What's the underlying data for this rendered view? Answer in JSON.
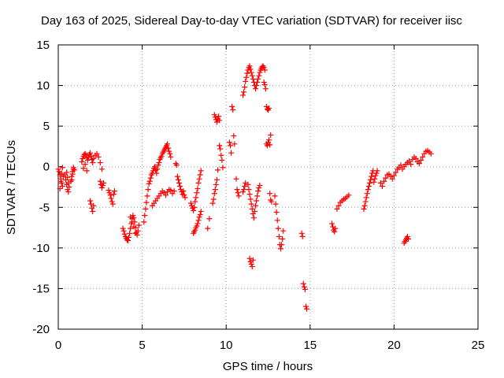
{
  "chart_data": {
    "type": "scatter",
    "title": "Day 163 of 2025, Sidereal Day-to-day VTEC variation (SDTVAR) for receiver iisc",
    "xlabel": "GPS time / hours",
    "ylabel": "SDTVAR / TECUs",
    "xlim": [
      0,
      25
    ],
    "ylim": [
      -20,
      15
    ],
    "xticks": [
      0,
      5,
      10,
      15,
      20,
      25
    ],
    "yticks": [
      -20,
      -15,
      -10,
      -5,
      0,
      5,
      10,
      15
    ],
    "grid": true,
    "marker": "+",
    "color": "#ff0000",
    "series": [
      {
        "name": "SDTVAR",
        "x": [
          0.0,
          0.05,
          0.1,
          0.15,
          0.2,
          0.25,
          0.3,
          0.1,
          0.15,
          0.2,
          0.25,
          0.4,
          0.45,
          0.5,
          0.55,
          0.6,
          0.65,
          0.5,
          0.55,
          0.6,
          0.75,
          0.8,
          0.85,
          0.9,
          0.95,
          0.8,
          0.85,
          0.9,
          1.4,
          1.45,
          1.5,
          1.55,
          1.6,
          1.65,
          1.7,
          1.75,
          1.8,
          1.85,
          1.9,
          1.95,
          2.0,
          2.05,
          2.1,
          2.2,
          2.3,
          2.4,
          2.5,
          2.6,
          1.5,
          1.6,
          1.7,
          1.9,
          1.95,
          2.0,
          2.05,
          2.1,
          2.5,
          2.55,
          2.6,
          2.65,
          2.7,
          3.0,
          3.05,
          3.1,
          3.15,
          3.2,
          3.25,
          3.3,
          3.35,
          3.85,
          3.9,
          3.95,
          4.0,
          4.05,
          4.1,
          4.15,
          4.2,
          4.25,
          4.3,
          4.35,
          4.4,
          4.45,
          4.5,
          4.55,
          4.6,
          4.65,
          4.7,
          4.75,
          4.8,
          4.3,
          4.4,
          4.5,
          4.6,
          5.1,
          5.15,
          5.2,
          5.25,
          5.3,
          5.35,
          5.4,
          5.45,
          5.5,
          5.55,
          5.6,
          5.65,
          5.7,
          5.75,
          5.8,
          5.85,
          5.9,
          5.95,
          6.0,
          6.05,
          6.1,
          6.15,
          6.2,
          6.25,
          6.3,
          6.35,
          6.4,
          6.45,
          6.5,
          6.55,
          6.6,
          6.65,
          6.7,
          5.6,
          5.7,
          5.8,
          5.9,
          6.0,
          6.1,
          6.2,
          6.3,
          6.4,
          6.5,
          6.6,
          6.7,
          6.8,
          6.9,
          7.0,
          7.05,
          7.1,
          7.15,
          7.2,
          7.25,
          7.3,
          7.35,
          7.4,
          7.45,
          7.5,
          7.55,
          7.9,
          7.95,
          8.0,
          8.05,
          8.1,
          8.15,
          8.2,
          8.25,
          8.3,
          8.35,
          8.4,
          8.45,
          8.5,
          8.05,
          8.1,
          8.15,
          8.2,
          8.25,
          8.3,
          8.35,
          8.4,
          8.45,
          8.5,
          8.9,
          9.0,
          9.3,
          9.35,
          9.4,
          9.45,
          9.5,
          9.55,
          9.6,
          9.2,
          9.25,
          9.3,
          9.35,
          9.4,
          9.45,
          9.5,
          9.6,
          9.65,
          9.7,
          9.75,
          9.8,
          10.2,
          10.25,
          10.3,
          10.35,
          10.4,
          10.45,
          10.5,
          10.6,
          10.65,
          10.7,
          10.75,
          11.0,
          11.05,
          11.1,
          11.15,
          11.2,
          11.25,
          11.3,
          11.35,
          11.4,
          11.45,
          11.5,
          11.55,
          11.6,
          11.65,
          11.7,
          11.75,
          11.8,
          11.85,
          11.9,
          11.95,
          12.0,
          12.05,
          12.1,
          12.15,
          12.2,
          12.25,
          12.3,
          11.0,
          11.05,
          11.1,
          11.15,
          11.3,
          11.35,
          11.4,
          11.45,
          11.5,
          11.55,
          11.6,
          11.65,
          11.7,
          11.75,
          11.8,
          11.85,
          11.9,
          11.95,
          12.0,
          12.25,
          12.3,
          12.35,
          12.4,
          12.45,
          12.5,
          12.55,
          12.4,
          12.45,
          12.5,
          12.55,
          12.6,
          12.65,
          12.6,
          12.65,
          12.7,
          12.9,
          12.95,
          13.0,
          13.05,
          13.1,
          13.15,
          13.2,
          13.25,
          13.3,
          13.35,
          13.4,
          11.4,
          11.45,
          11.5,
          11.55,
          11.6,
          14.5,
          14.55,
          14.6,
          14.65,
          14.7,
          14.75,
          14.8,
          16.3,
          16.35,
          16.4,
          16.45,
          16.5,
          16.6,
          16.7,
          16.8,
          16.9,
          17.0,
          17.1,
          17.2,
          17.3,
          18.2,
          18.25,
          18.3,
          18.35,
          18.4,
          18.45,
          18.5,
          18.55,
          18.6,
          18.65,
          18.7,
          18.75,
          18.8,
          18.85,
          18.9,
          18.95,
          19.0,
          19.2,
          19.3,
          19.4,
          19.5,
          19.6,
          19.7,
          19.8,
          19.9,
          20.0,
          20.1,
          20.2,
          20.3,
          20.4,
          20.5,
          20.6,
          20.7,
          20.8,
          20.9,
          21.0,
          21.1,
          21.2,
          21.3,
          21.4,
          21.5,
          21.6,
          21.7,
          21.8,
          21.9,
          22.0,
          22.1,
          22.2,
          20.6,
          20.65,
          20.7,
          20.75,
          20.8,
          20.85
        ],
        "y": [
          -0.3,
          -0.6,
          -1.0,
          -1.5,
          -2.0,
          -2.4,
          -1.2,
          -2.7,
          -1.8,
          -0.8,
          -0.1,
          -1.0,
          -1.6,
          -2.2,
          -2.8,
          -3.1,
          -2.5,
          -0.7,
          -1.3,
          -2.0,
          -1.8,
          -1.2,
          -0.6,
          -0.1,
          -0.4,
          -1.6,
          -0.9,
          -0.3,
          0.6,
          1.0,
          1.3,
          1.5,
          1.6,
          1.4,
          1.1,
          0.8,
          1.2,
          1.5,
          1.7,
          1.3,
          0.9,
          0.5,
          1.0,
          1.4,
          1.6,
          1.2,
          0.5,
          -0.3,
          -0.2,
          0.3,
          -0.5,
          -4.2,
          -4.6,
          -5.1,
          -5.5,
          -4.8,
          -1.8,
          -2.2,
          -2.6,
          -2.3,
          -2.0,
          -2.9,
          -3.2,
          -3.5,
          -3.9,
          -4.3,
          -4.6,
          -3.4,
          -3.0,
          -7.6,
          -7.9,
          -8.3,
          -8.6,
          -8.8,
          -9.0,
          -9.1,
          -8.7,
          -8.2,
          -7.6,
          -7.0,
          -6.4,
          -6.0,
          -6.3,
          -6.8,
          -7.5,
          -8.1,
          -8.4,
          -7.9,
          -7.2,
          -6.2,
          -6.8,
          -7.4,
          -8.2,
          -6.8,
          -6.0,
          -5.2,
          -4.4,
          -3.6,
          -2.8,
          -2.1,
          -1.8,
          -1.4,
          -1.0,
          -0.8,
          -0.5,
          -0.2,
          0.0,
          -0.4,
          -0.8,
          -0.3,
          0.2,
          0.5,
          0.9,
          1.1,
          1.3,
          1.6,
          1.8,
          2.0,
          2.2,
          2.4,
          2.6,
          2.8,
          2.3,
          1.9,
          1.6,
          1.2,
          -4.8,
          -4.5,
          -4.2,
          -3.9,
          -3.6,
          -3.3,
          -3.0,
          -3.2,
          -3.5,
          -3.1,
          -2.8,
          -2.9,
          -3.3,
          -3.0,
          0.4,
          0.2,
          -1.2,
          -1.6,
          -2.0,
          -2.4,
          -2.8,
          -3.1,
          -3.4,
          -3.0,
          -3.5,
          -3.8,
          -4.5,
          -4.8,
          -5.1,
          -5.4,
          -5.0,
          -4.3,
          -3.8,
          -3.2,
          -2.7,
          -2.0,
          -1.5,
          -1.0,
          -0.5,
          -8.2,
          -8.0,
          -7.8,
          -7.5,
          -7.3,
          -7.0,
          -6.6,
          -6.2,
          -5.9,
          -5.5,
          -7.6,
          -6.4,
          6.4,
          6.1,
          5.8,
          5.5,
          5.9,
          6.2,
          5.7,
          -4.5,
          -4.0,
          -3.3,
          -2.8,
          -2.2,
          -1.6,
          -0.4,
          2.6,
          2.2,
          1.4,
          0.8,
          -0.1,
          3.0,
          2.6,
          1.7,
          7.4,
          7.0,
          3.8,
          2.8,
          -1.5,
          -2.8,
          -3.2,
          -3.6,
          8.8,
          9.2,
          9.8,
          10.5,
          11.0,
          11.5,
          11.9,
          12.2,
          12.4,
          12.0,
          11.6,
          11.2,
          10.8,
          10.4,
          10.0,
          9.6,
          10.0,
          10.4,
          10.8,
          11.2,
          11.6,
          11.9,
          12.1,
          12.3,
          12.4,
          12.2,
          11.9,
          -3.1,
          -2.8,
          -2.4,
          -2.0,
          -2.2,
          -2.8,
          -3.4,
          -4.0,
          -4.6,
          -5.2,
          -5.8,
          -6.3,
          -5.5,
          -4.8,
          -4.2,
          -3.6,
          -3.0,
          -2.6,
          -2.3,
          10.4,
          10.1,
          9.6,
          7.4,
          7.1,
          7.0,
          7.2,
          2.8,
          2.6,
          3.0,
          3.3,
          2.7,
          3.9,
          -3.3,
          -4.1,
          -4.3,
          -3.6,
          -4.6,
          -5.6,
          -6.6,
          -7.6,
          -8.6,
          -9.6,
          -10.1,
          -9.6,
          -8.9,
          -7.9,
          -11.3,
          -11.7,
          -12.0,
          -12.3,
          -11.5,
          -8.2,
          -8.6,
          -14.4,
          -14.8,
          -15.1,
          -17.2,
          -17.5,
          -7.0,
          -7.4,
          -7.8,
          -8.0,
          -7.6,
          -5.2,
          -4.8,
          -4.4,
          -4.2,
          -4.0,
          -3.9,
          -3.7,
          -3.5,
          -5.2,
          -4.8,
          -4.3,
          -3.8,
          -3.3,
          -2.8,
          -2.4,
          -2.0,
          -1.6,
          -1.2,
          -0.8,
          -0.5,
          -1.9,
          -1.5,
          -1.1,
          -0.8,
          -0.5,
          -2.0,
          -2.4,
          -1.8,
          -1.4,
          -1.0,
          -0.9,
          -1.2,
          -1.5,
          -1.1,
          -0.7,
          -0.3,
          -0.1,
          0.2,
          -0.3,
          0.0,
          0.3,
          0.5,
          0.7,
          0.3,
          0.9,
          1.2,
          1.0,
          0.6,
          0.4,
          0.8,
          1.2,
          1.6,
          1.9,
          2.0,
          1.8,
          1.6,
          -9.4,
          -9.2,
          -9.0,
          -8.8,
          -8.6,
          -8.9
        ]
      }
    ]
  }
}
